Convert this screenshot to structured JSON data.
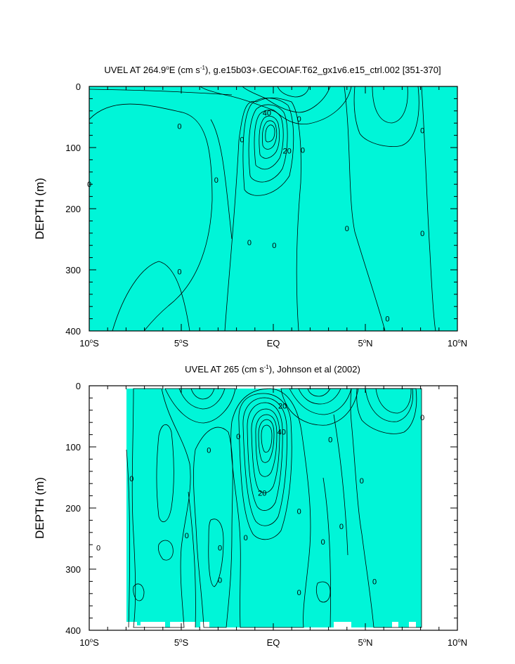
{
  "colors": {
    "teal": "#00f5d8",
    "cyan_light": "#00ffff",
    "cyan": "#00ccff",
    "blue": "#00a8ff",
    "blue_dark": "#0080ff",
    "green": "#3cff3c",
    "green_dark": "#66ee00",
    "green_yellow": "#99ee00",
    "yellow": "#ffff00",
    "yellow_orange": "#ffdd33",
    "orange_light": "#ffaa44",
    "orange": "#ff8833",
    "orange_dark": "#ee6622"
  },
  "chart_data": [
    {
      "type": "contour",
      "title": "UVEL AT 264.9°E (cm s-1), g.e15b03+.GECOIAF.T62_gx1v6.e15_ctrl.002 [351-370]",
      "title_parts": {
        "a": "UVEL AT 264.9",
        "deg": "o",
        "b": "E (cm s",
        "sup": "-1",
        "c": "), g.e15b03+.GECOIAF.T62_gx1v6.e15_ctrl.002 [351-370]"
      },
      "ylabel": "DEPTH (m)",
      "xlim": [
        -10,
        10
      ],
      "ylim": [
        400,
        0
      ],
      "x_ticks": [
        -10,
        -5,
        0,
        5,
        10
      ],
      "x_tick_labels": [
        {
          "num": "10",
          "deg": "o",
          "hem": "S"
        },
        {
          "num": "5",
          "deg": "o",
          "hem": "S"
        },
        {
          "num": "EQ",
          "deg": "",
          "hem": ""
        },
        {
          "num": "5",
          "deg": "o",
          "hem": "N"
        },
        {
          "num": "10",
          "deg": "o",
          "hem": "N"
        }
      ],
      "y_ticks": [
        0,
        100,
        200,
        300,
        400
      ],
      "y_tick_labels": [
        "0",
        "100",
        "200",
        "300",
        "400"
      ],
      "contour_labels": [
        {
          "text": "0",
          "x": -10,
          "y": 160
        },
        {
          "text": "0",
          "x": -5.1,
          "y": 65
        },
        {
          "text": "0",
          "x": -3.1,
          "y": 153
        },
        {
          "text": "0",
          "x": -5.1,
          "y": 303
        },
        {
          "text": "0",
          "x": -1.7,
          "y": 87
        },
        {
          "text": "0",
          "x": -1.3,
          "y": 255
        },
        {
          "text": "0",
          "x": 0.05,
          "y": 260
        },
        {
          "text": "0",
          "x": 1.4,
          "y": 53
        },
        {
          "text": "0",
          "x": 1.6,
          "y": 104
        },
        {
          "text": "0",
          "x": 4.0,
          "y": 232
        },
        {
          "text": "0",
          "x": 6.2,
          "y": 380
        },
        {
          "text": "0",
          "x": 8.1,
          "y": 72
        },
        {
          "text": "0",
          "x": 8.1,
          "y": 240
        },
        {
          "text": "40",
          "x": -0.35,
          "y": 43
        },
        {
          "text": "20",
          "x": 0.75,
          "y": 105
        }
      ]
    },
    {
      "type": "contour",
      "title": "UVEL AT 265 (cm s-1), Johnson et al (2002)",
      "title_parts": {
        "a": "UVEL AT 265 (cm s",
        "sup": "-1",
        "c": "), Johnson et al (2002)"
      },
      "ylabel": "DEPTH (m)",
      "xlim": [
        -10,
        10
      ],
      "ylim": [
        400,
        0
      ],
      "x_ticks": [
        -10,
        -5,
        0,
        5,
        10
      ],
      "x_tick_labels": [
        {
          "num": "10",
          "deg": "o",
          "hem": "S"
        },
        {
          "num": "5",
          "deg": "o",
          "hem": "S"
        },
        {
          "num": "EQ",
          "deg": "",
          "hem": ""
        },
        {
          "num": "5",
          "deg": "o",
          "hem": "N"
        },
        {
          "num": "10",
          "deg": "o",
          "hem": "N"
        }
      ],
      "y_ticks": [
        0,
        100,
        200,
        300,
        400
      ],
      "y_tick_labels": [
        "0",
        "100",
        "200",
        "300",
        "400"
      ],
      "contour_labels": [
        {
          "text": "0",
          "x": -7.7,
          "y": 152
        },
        {
          "text": "0",
          "x": -9.5,
          "y": 265
        },
        {
          "text": "0",
          "x": -4.7,
          "y": 245
        },
        {
          "text": "0",
          "x": -3.5,
          "y": 105
        },
        {
          "text": "0",
          "x": -2.9,
          "y": 265
        },
        {
          "text": "0",
          "x": -2.9,
          "y": 318
        },
        {
          "text": "0",
          "x": -1.5,
          "y": 248
        },
        {
          "text": "0",
          "x": -1.9,
          "y": 83
        },
        {
          "text": "0",
          "x": 1.4,
          "y": 205
        },
        {
          "text": "0",
          "x": 1.4,
          "y": 338
        },
        {
          "text": "0",
          "x": 2.7,
          "y": 255
        },
        {
          "text": "0",
          "x": 3.1,
          "y": 88
        },
        {
          "text": "0",
          "x": 3.7,
          "y": 230
        },
        {
          "text": "0",
          "x": 4.8,
          "y": 155
        },
        {
          "text": "0",
          "x": 5.5,
          "y": 320
        },
        {
          "text": "0",
          "x": 8.1,
          "y": 52
        },
        {
          "text": "20",
          "x": 0.5,
          "y": 33
        },
        {
          "text": "40",
          "x": 0.45,
          "y": 75
        },
        {
          "text": "20",
          "x": -0.6,
          "y": 175
        }
      ]
    }
  ]
}
